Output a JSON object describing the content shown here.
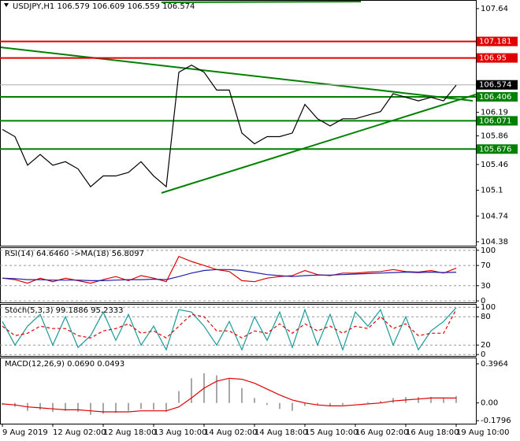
{
  "chart_data": [
    {
      "type": "line",
      "title": "USDJPY,H1  106.579 106.609 106.559 106.574",
      "categories": [
        "9 Aug 2019",
        null,
        null,
        null,
        "12 Aug 02:00",
        null,
        null,
        null,
        "12 Aug 18:00",
        null,
        null,
        null,
        "13 Aug 10:00",
        null,
        null,
        null,
        "14 Aug 02:00",
        null,
        null,
        null,
        "14 Aug 18:00",
        null,
        null,
        null,
        "15 Aug 10:00",
        null,
        null,
        null,
        "16 Aug 02:00",
        null,
        null,
        null,
        "16 Aug 18:00",
        null,
        null,
        null,
        "19 Aug 10:00"
      ],
      "series": [
        {
          "color": "#000000",
          "values": [
            105.95,
            105.85,
            105.45,
            105.6,
            105.45,
            105.5,
            105.4,
            105.15,
            105.3,
            105.3,
            105.35,
            105.5,
            105.3,
            105.15,
            106.75,
            106.85,
            106.75,
            106.5,
            106.5,
            105.9,
            105.75,
            105.85,
            105.85,
            105.9,
            106.3,
            106.1,
            106.0,
            106.1,
            106.1,
            106.15,
            106.2,
            106.45,
            106.4,
            106.35,
            106.4,
            106.35,
            106.57
          ]
        }
      ],
      "ylim": [
        104.325,
        107.76
      ],
      "yticks": [
        107.64,
        106.19,
        105.86,
        105.46,
        105.1,
        104.74,
        104.38
      ],
      "levels": [
        {
          "value": 107.181,
          "color": "#e00000"
        },
        {
          "value": 106.95,
          "color": "#e00000"
        },
        {
          "value": 106.574,
          "color": "#000000"
        },
        {
          "value": 106.406,
          "color": "#008000"
        },
        {
          "value": 106.071,
          "color": "#008000"
        },
        {
          "value": 105.676,
          "color": "#008000"
        }
      ]
    },
    {
      "type": "line",
      "title": "RSI(14) 64.6460  ->MA(18) 56.8097",
      "series": [
        {
          "color": "#e00000",
          "values": [
            45,
            42,
            35,
            45,
            38,
            45,
            40,
            35,
            42,
            48,
            40,
            50,
            45,
            38,
            88,
            78,
            70,
            62,
            58,
            40,
            38,
            45,
            48,
            50,
            60,
            52,
            50,
            55,
            55,
            57,
            58,
            62,
            58,
            57,
            60,
            55,
            64.6
          ]
        },
        {
          "color": "#1f1fb0",
          "values": [
            45,
            44,
            42,
            42,
            41,
            41,
            41,
            40,
            40,
            41,
            42,
            42,
            43,
            42,
            48,
            55,
            60,
            62,
            62,
            60,
            56,
            52,
            50,
            48,
            50,
            51,
            51,
            52,
            53,
            54,
            55,
            56,
            57,
            56,
            57,
            56,
            56.8
          ]
        }
      ],
      "ylim": [
        -3,
        106
      ],
      "yticks": [
        100,
        70,
        30,
        0
      ],
      "grid": true
    },
    {
      "type": "line",
      "title": "Stoch(5,3,3) 99.1886 95.2333",
      "series": [
        {
          "color": "#1a9a9a",
          "values": [
            70,
            20,
            60,
            85,
            20,
            80,
            15,
            40,
            90,
            30,
            85,
            20,
            60,
            10,
            95,
            90,
            60,
            20,
            70,
            10,
            80,
            30,
            90,
            15,
            95,
            20,
            85,
            10,
            90,
            60,
            95,
            20,
            80,
            10,
            50,
            70,
            99.2
          ]
        },
        {
          "color": "#e00000",
          "dash": true,
          "values": [
            60,
            40,
            45,
            60,
            55,
            55,
            40,
            35,
            50,
            55,
            65,
            45,
            50,
            35,
            60,
            85,
            80,
            50,
            50,
            35,
            50,
            45,
            65,
            45,
            65,
            50,
            60,
            45,
            60,
            55,
            80,
            55,
            65,
            40,
            45,
            45,
            95.2
          ]
        }
      ],
      "ylim": [
        -3,
        107
      ],
      "yticks": [
        100,
        80,
        20,
        0
      ],
      "grid": true
    },
    {
      "type": "combo",
      "title": "MACD(12,26,9) 0.0690 0.0493",
      "series": [
        {
          "color": "#a8a8a8",
          "style": "bar",
          "values": [
            -0.02,
            -0.04,
            -0.08,
            -0.07,
            -0.09,
            -0.08,
            -0.09,
            -0.12,
            -0.11,
            -0.1,
            -0.08,
            -0.06,
            -0.07,
            -0.09,
            0.12,
            0.25,
            0.3,
            0.28,
            0.25,
            0.15,
            0.05,
            -0.02,
            -0.06,
            -0.08,
            -0.03,
            -0.02,
            -0.03,
            -0.02,
            0.0,
            0.01,
            0.02,
            0.05,
            0.06,
            0.06,
            0.06,
            0.05,
            0.069
          ]
        },
        {
          "color": "#e00000",
          "style": "line",
          "values": [
            -0.01,
            -0.02,
            -0.04,
            -0.05,
            -0.06,
            -0.07,
            -0.07,
            -0.08,
            -0.09,
            -0.09,
            -0.09,
            -0.08,
            -0.08,
            -0.08,
            -0.04,
            0.05,
            0.15,
            0.22,
            0.25,
            0.24,
            0.2,
            0.14,
            0.08,
            0.03,
            0.0,
            -0.02,
            -0.03,
            -0.03,
            -0.02,
            -0.01,
            0.0,
            0.02,
            0.03,
            0.04,
            0.05,
            0.05,
            0.0493
          ]
        }
      ],
      "ylim": [
        -0.21,
        0.46
      ],
      "yticks": [
        0.3964,
        {
          "value": 0,
          "label": "0.00"
        },
        -0.1796
      ]
    }
  ]
}
